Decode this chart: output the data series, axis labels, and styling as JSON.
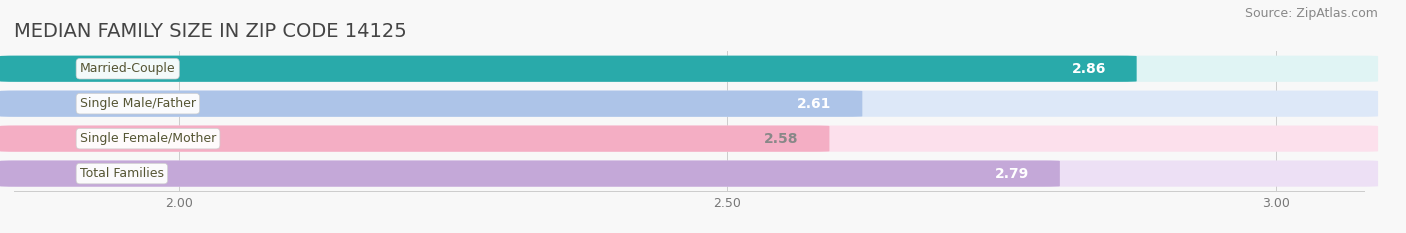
{
  "title": "MEDIAN FAMILY SIZE IN ZIP CODE 14125",
  "source": "Source: ZipAtlas.com",
  "categories": [
    "Married-Couple",
    "Single Male/Father",
    "Single Female/Mother",
    "Total Families"
  ],
  "values": [
    2.86,
    2.61,
    2.58,
    2.79
  ],
  "bar_colors": [
    "#29aaaa",
    "#adc4e8",
    "#f4aec4",
    "#c4a8d8"
  ],
  "bar_bg_colors": [
    "#e0f4f4",
    "#dde8f8",
    "#fce0ec",
    "#ede0f5"
  ],
  "value_label_colors": [
    "#ffffff",
    "#ffffff",
    "#888888",
    "#ffffff"
  ],
  "xmin": 1.85,
  "xmax": 3.08,
  "xticks": [
    2.0,
    2.5,
    3.0
  ],
  "xtick_labels": [
    "2.00",
    "2.50",
    "3.00"
  ],
  "title_fontsize": 14,
  "source_fontsize": 9,
  "bar_label_fontsize": 10,
  "category_fontsize": 9,
  "background_color": "#f8f8f8",
  "figsize": [
    14.06,
    2.33
  ],
  "dpi": 100
}
